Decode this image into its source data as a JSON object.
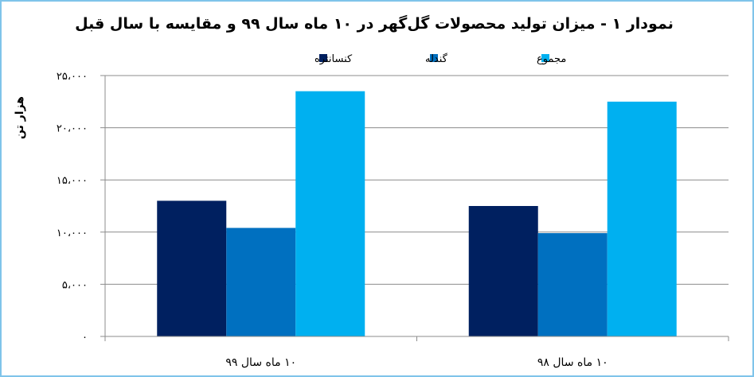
{
  "chart_data": {
    "type": "bar",
    "title": "نمودار ۱ - میزان تولید محصولات گل‌گهر در ۱۰ ماه سال ۹۹ و مقایسه با سال قبل",
    "ylabel": "هزار تن",
    "xlabel": "",
    "categories": [
      "۱۰ ماه سال ۹۹",
      "۱۰ ماه سال ۹۸"
    ],
    "series": [
      {
        "name": "کنسانتره",
        "color": "#002060",
        "values": [
          13000,
          12500
        ]
      },
      {
        "name": "گندله",
        "color": "#0070c0",
        "values": [
          10400,
          9900
        ]
      },
      {
        "name": "مجموع",
        "color": "#00b0f0",
        "values": [
          23500,
          22500
        ]
      }
    ],
    "ylim": [
      0,
      25000
    ],
    "yticks": [
      0,
      5000,
      10000,
      15000,
      20000,
      25000
    ],
    "ytick_labels": [
      "۰",
      "۵،۰۰۰",
      "۱۰،۰۰۰",
      "۱۵،۰۰۰",
      "۲۰،۰۰۰",
      "۲۵،۰۰۰"
    ],
    "grid": true,
    "legend_position": "top"
  }
}
